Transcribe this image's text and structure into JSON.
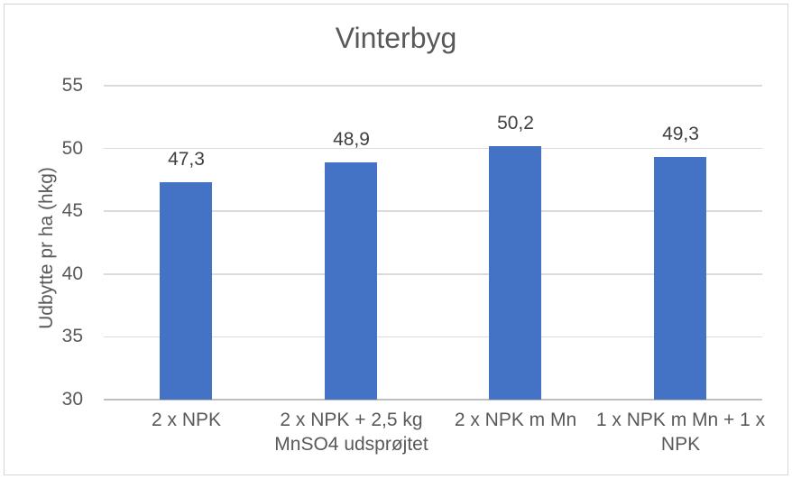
{
  "chart_data": {
    "type": "bar",
    "title": "Vinterbyg",
    "xlabel": "",
    "ylabel": "Udbytte pr ha (hkg)",
    "categories": [
      "2 x NPK",
      "2 x NPK + 2,5 kg MnSO4 udsprøjtet",
      "2 x NPK m Mn",
      "1 x NPK m Mn + 1 x NPK"
    ],
    "category_lines": [
      [
        "2 x NPK"
      ],
      [
        "2 x NPK + 2,5 kg",
        "MnSO4 udsprøjtet"
      ],
      [
        "2 x NPK m Mn"
      ],
      [
        "1 x NPK m Mn + 1 x",
        "NPK"
      ]
    ],
    "values": [
      47.3,
      48.9,
      50.2,
      49.3
    ],
    "value_labels": [
      "47,3",
      "48,9",
      "50,2",
      "49,3"
    ],
    "ylim": [
      30,
      55
    ],
    "yticks": [
      55,
      50,
      45,
      40,
      35,
      30
    ],
    "grid": true,
    "legend": false,
    "bar_color": "#4472C4",
    "gridline_color": "#DBDBDB",
    "axis_line_color": "#BFBFBF",
    "title_color": "#595959",
    "axis_text_color": "#595959",
    "value_label_color": "#404040",
    "frame_border_color": "#D6D6D6",
    "background_color": "#FFFFFF"
  }
}
